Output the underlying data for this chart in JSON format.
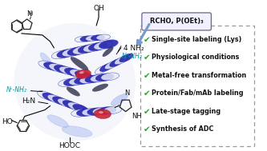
{
  "reagent_label": "RCHO, P(OEt)₃",
  "checkmarks": [
    "Single-site labeling (Lys)",
    "Physiological conditions",
    "Metal-free transformation",
    "Protein/Fab/mAb labeling",
    "Late-stage tagging",
    "Synthesis of ADC"
  ],
  "check_color": "#22aa22",
  "box_border_color": "#999999",
  "reagent_box_facecolor": "#f0f0ff",
  "reagent_border_color": "#666688",
  "background_color": "#ffffff",
  "arrow_color": "#7799cc",
  "teal_color": "#009999",
  "label_nh2_top": "4 NH₂",
  "label_nz_top": "Nᶜ-NH₂",
  "label_nz_left": "Nᶜ-NH₂",
  "label_h2n": "H₂N",
  "label_ho": "HO",
  "label_hooc": "HOOC",
  "label_nh": "NH",
  "label_n": "N",
  "label_oh": "OH",
  "protein_blue_dark": "#1a1aaa",
  "protein_blue_mid": "#4466cc",
  "protein_blue_light": "#aabbee",
  "protein_white": "#e8ecf8",
  "protein_red": "#cc2233",
  "protein_black": "#111133"
}
